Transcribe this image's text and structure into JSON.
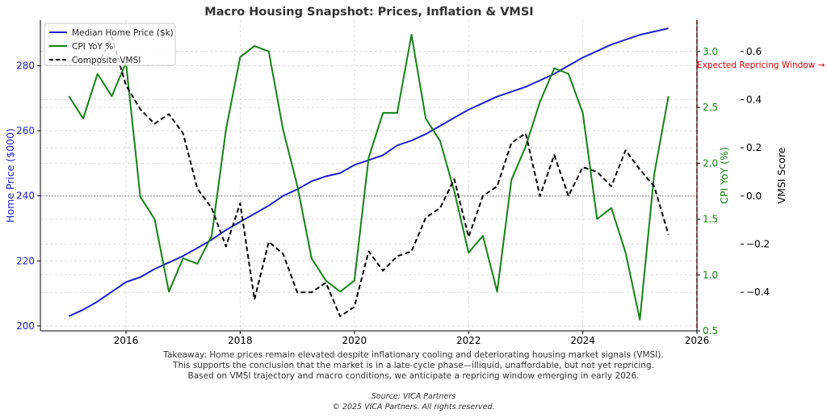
{
  "chart_data": {
    "type": "line",
    "title": "Macro Housing Snapshot: Prices, Inflation & VMSI",
    "x": [
      2015.0,
      2015.25,
      2015.5,
      2015.75,
      2016.0,
      2016.25,
      2016.5,
      2016.75,
      2017.0,
      2017.25,
      2017.5,
      2017.75,
      2018.0,
      2018.25,
      2018.5,
      2018.75,
      2019.0,
      2019.25,
      2019.5,
      2019.75,
      2020.0,
      2020.25,
      2020.5,
      2020.75,
      2021.0,
      2021.25,
      2021.5,
      2021.75,
      2022.0,
      2022.25,
      2022.5,
      2022.75,
      2023.0,
      2023.25,
      2023.5,
      2023.75,
      2024.0,
      2024.25,
      2024.5,
      2024.75,
      2025.0,
      2025.25,
      2025.5
    ],
    "xlim": [
      2014.5,
      2026.0
    ],
    "xticks": [
      2016,
      2018,
      2020,
      2022,
      2024,
      2026
    ],
    "series": [
      {
        "name": "Median Home Price ($k)",
        "axis": "left",
        "color": "#1f1fd0",
        "style": "solid",
        "values": [
          203,
          205,
          207.5,
          210.5,
          213.5,
          215,
          217.5,
          219.5,
          221.5,
          224,
          226.5,
          229.5,
          232,
          234.5,
          237,
          240,
          242,
          244.5,
          246,
          247,
          249.5,
          251,
          252.5,
          255.5,
          257,
          259,
          261.5,
          264,
          266.5,
          268.5,
          270.5,
          272,
          273.5,
          275.5,
          277.5,
          280,
          282.5,
          284.5,
          286.5,
          288,
          289.5,
          290.5,
          291.5
        ]
      },
      {
        "name": "CPI YoY %",
        "axis": "right1",
        "color": "#148214",
        "style": "solid",
        "values": [
          2.6,
          2.4,
          2.8,
          2.6,
          2.9,
          1.7,
          1.5,
          0.85,
          1.15,
          1.1,
          1.35,
          2.3,
          2.95,
          3.05,
          3.0,
          2.3,
          1.8,
          1.15,
          0.95,
          0.85,
          0.95,
          2.05,
          2.45,
          2.45,
          3.15,
          2.4,
          2.2,
          1.75,
          1.2,
          1.35,
          0.85,
          1.85,
          2.15,
          2.55,
          2.85,
          2.8,
          2.45,
          1.5,
          1.6,
          1.2,
          0.6,
          1.9,
          2.6
        ]
      },
      {
        "name": "Composite VMSI",
        "axis": "right2",
        "color": "#000000",
        "style": "dashed",
        "values": [
          0.56,
          0.57,
          0.54,
          0.66,
          0.46,
          0.36,
          0.3,
          0.34,
          0.26,
          0.03,
          -0.05,
          -0.21,
          -0.03,
          -0.43,
          -0.19,
          -0.24,
          -0.4,
          -0.4,
          -0.36,
          -0.5,
          -0.46,
          -0.23,
          -0.31,
          -0.25,
          -0.23,
          -0.09,
          -0.05,
          0.07,
          -0.17,
          0.0,
          0.04,
          0.22,
          0.26,
          0.0,
          0.17,
          0.0,
          0.12,
          0.1,
          0.04,
          0.19,
          0.11,
          0.04,
          -0.16
        ]
      }
    ],
    "y_left": {
      "label": "Home Price ($000)",
      "lim": [
        198.5,
        294
      ],
      "ticks": [
        200,
        220,
        240,
        260,
        280
      ],
      "color": "#1f1fd0"
    },
    "y_right1": {
      "label": "CPI YoY (%)",
      "lim": [
        0.5,
        3.28
      ],
      "ticks": [
        0.5,
        1.0,
        1.5,
        2.0,
        2.5,
        3.0
      ],
      "color": "#148214"
    },
    "y_right2": {
      "label": "VMSI Score",
      "lim": [
        -0.56,
        0.73
      ],
      "ticks": [
        -0.4,
        -0.2,
        0.0,
        0.2,
        0.4,
        0.6
      ],
      "color": "#000000"
    },
    "grid": true,
    "legend": "top-left",
    "annotations": [
      {
        "type": "vline",
        "x": 2026.0,
        "color": "#e00000",
        "style": "dashed",
        "text": "Expected Repricing Window →"
      },
      {
        "type": "hline",
        "axis": "right2",
        "y": 0.0,
        "color": "#888888",
        "style": "dotted"
      }
    ]
  },
  "caption": {
    "lines": [
      "Takeaway: Home prices remain elevated despite inflationary cooling and deteriorating housing market signals (VMSI).",
      "This supports the conclusion that the market is in a late-cycle phase—illiquid, unaffordable, but not yet repricing.",
      "Based on VMSI trajectory and macro conditions, we anticipate a repricing window emerging in early 2026."
    ]
  },
  "footer": {
    "source": "Source: VICA Partners",
    "copyright": "© 2025 VICA Partners. All rights reserved."
  }
}
